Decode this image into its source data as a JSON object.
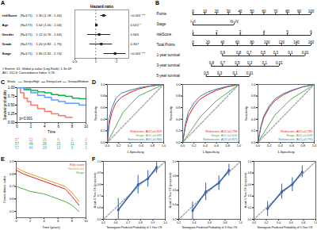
{
  "chart_data": [
    {
      "panel": "A",
      "type": "forest",
      "title": "Hazard ratio",
      "log": "x",
      "xlim": [
        0.5,
        3
      ],
      "xticks": [
        0.5,
        1,
        2
      ],
      "reference_line": 1,
      "rows": [
        {
          "name": "riskScore",
          "n_label": "(N=171)",
          "hr": 1.3,
          "lo": 1.18,
          "hi": 1.44,
          "hr_label": "1.30 (1.18 - 1.44)",
          "p_label": "<0.001 ***"
        },
        {
          "name": "Age",
          "n_label": "(N=171)",
          "hr": 1.02,
          "lo": 1.0,
          "hi": 1.04,
          "hr_label": "1.02 (1.00 - 1.04)",
          "p_label": "0.022 *"
        },
        {
          "name": "Gender",
          "n_label": "(N=171)",
          "hr": 1.12,
          "lo": 0.76,
          "hi": 1.64,
          "hr_label": "1.12 (0.76 - 1.64)",
          "p_label": "0.565"
        },
        {
          "name": "Grade",
          "n_label": "(N=171)",
          "hr": 1.2,
          "lo": 0.82,
          "hi": 1.75,
          "hr_label": "1.20 (0.82 - 1.75)",
          "p_label": "0.347"
        },
        {
          "name": "Stage",
          "n_label": "(N=171)",
          "hr": 1.9,
          "lo": 1.32,
          "hi": 2.74,
          "hr_label": "1.90 (1.32 - 2.74)",
          "p_label": "<0.001 ***"
        }
      ],
      "footer": [
        "# Events: 61; Global p-value (Log-Rank): 1.3e-09",
        "AIC: 512.6; Concordance Index: 0.76"
      ]
    },
    {
      "panel": "B",
      "type": "nomogram",
      "rows": [
        {
          "name": "Points",
          "xlim": [
            0,
            100
          ],
          "ticks": [
            0,
            10,
            20,
            30,
            40,
            50,
            60,
            70,
            80,
            90,
            100
          ]
        },
        {
          "name": "Stage",
          "xlim": [
            0,
            100
          ],
          "ticks": [
            {
              "points": 0,
              "label": "I~II"
            },
            {
              "points": 35,
              "label": "III~IV"
            }
          ]
        },
        {
          "name": "riskScore",
          "xlim": [
            1,
            6
          ],
          "ticks": [
            1,
            2,
            3,
            4,
            5,
            6
          ]
        },
        {
          "name": "Total Points",
          "xlim": [
            0,
            160
          ],
          "ticks": [
            0,
            20,
            40,
            60,
            80,
            100,
            120,
            140,
            160
          ]
        },
        {
          "name": "1-year survival",
          "xlim": [
            0,
            160
          ],
          "ticks": [
            {
              "points": 40,
              "value": 0.9
            },
            {
              "points": 62,
              "value": 0.8
            },
            {
              "points": 76,
              "value": 0.7
            },
            {
              "points": 95,
              "value": 0.5
            },
            {
              "points": 112,
              "value": 0.3
            },
            {
              "points": 132,
              "value": 0.1
            },
            {
              "points": 152,
              "value": 0.01
            }
          ]
        },
        {
          "name": "3-year survival",
          "xlim": [
            0,
            160
          ],
          "ticks": [
            {
              "points": 25,
              "value": 0.8
            },
            {
              "points": 40,
              "value": 0.7
            },
            {
              "points": 60,
              "value": 0.5
            },
            {
              "points": 77,
              "value": 0.3
            },
            {
              "points": 97,
              "value": 0.1
            },
            {
              "points": 117,
              "value": 0.01
            }
          ]
        },
        {
          "name": "5-year survival",
          "xlim": [
            0,
            160
          ],
          "ticks": [
            {
              "points": 18,
              "value": 0.5
            },
            {
              "points": 36,
              "value": 0.3
            },
            {
              "points": 57,
              "value": 0.1
            },
            {
              "points": 77,
              "value": 0.01
            }
          ]
        }
      ]
    },
    {
      "panel": "C",
      "type": "survival",
      "legend_title": "Strata",
      "xlabel": "Time",
      "ylabel": "Survival probability",
      "xlim": [
        0,
        10
      ],
      "xticks": [
        0,
        2,
        4,
        6,
        8,
        10
      ],
      "ylim": [
        0,
        1
      ],
      "yticks": [
        {
          "value": 0,
          "label": "0.00"
        },
        {
          "value": 0.25,
          "label": "0.25"
        },
        {
          "value": 0.5,
          "label": "0.50"
        },
        {
          "value": 0.75,
          "label": "0.75"
        },
        {
          "value": 1,
          "label": "1.00"
        }
      ],
      "annotation": "p<0.001",
      "risk_table_times": [
        0,
        2,
        4,
        6,
        8,
        10
      ],
      "series": [
        {
          "name": "Group=High",
          "color": "#F8766D",
          "x": [
            0,
            0.5,
            1,
            1.5,
            2,
            3,
            4,
            5,
            6,
            7,
            8
          ],
          "values": [
            1,
            0.85,
            0.7,
            0.6,
            0.5,
            0.4,
            0.32,
            0.25,
            0.2,
            0.15,
            0.15
          ],
          "at_risk": [
            57,
            32,
            15,
            6,
            2,
            0
          ]
        },
        {
          "name": "Group=Low",
          "color": "#00BA38",
          "x": [
            0,
            1,
            2,
            3,
            4,
            5,
            6,
            7,
            8,
            9,
            10
          ],
          "values": [
            1,
            0.96,
            0.92,
            0.88,
            0.85,
            0.8,
            0.78,
            0.75,
            0.7,
            0.68,
            0.68
          ],
          "at_risk": [
            57,
            49,
            38,
            23,
            11,
            3
          ]
        },
        {
          "name": "Group=Medium",
          "color": "#619CFF",
          "x": [
            0,
            1,
            2,
            3,
            4,
            5,
            6,
            7,
            8,
            9,
            10
          ],
          "values": [
            1,
            0.93,
            0.85,
            0.78,
            0.72,
            0.65,
            0.6,
            0.55,
            0.55,
            0.5,
            0.5
          ],
          "at_risk": [
            57,
            46,
            28,
            16,
            8,
            1
          ]
        }
      ]
    },
    {
      "panel": "D",
      "type": "roc",
      "xlabel": "1-Specificity",
      "ylabel": "Sensitivity",
      "xlim": [
        0,
        1
      ],
      "xticks": [
        {
          "value": 0,
          "label": "0.0"
        },
        0.2,
        0.4,
        0.6,
        0.8,
        {
          "value": 1,
          "label": "1.0"
        }
      ],
      "ylim": [
        0,
        1
      ],
      "yticks": [
        {
          "value": 0,
          "label": "0.0"
        },
        0.2,
        0.4,
        0.6,
        0.8,
        {
          "value": 1,
          "label": "1.0"
        }
      ],
      "series": [
        {
          "name": "Riskscore, AUC=0.829",
          "color": "#e41a1c",
          "x": [
            0,
            0.03,
            0.08,
            0.15,
            0.25,
            0.4,
            0.55,
            0.75,
            1
          ],
          "values": [
            0,
            0.3,
            0.52,
            0.68,
            0.78,
            0.86,
            0.92,
            0.97,
            1
          ]
        },
        {
          "name": "Stage, AUC=0.685",
          "color": "#4daf4a",
          "x": [
            0,
            0.28,
            0.55,
            1
          ],
          "values": [
            0,
            0.52,
            0.8,
            1
          ]
        },
        {
          "name": "Nomoscore, AUC=0.866",
          "color": "#377eb8",
          "x": [
            0,
            0.03,
            0.08,
            0.15,
            0.25,
            0.4,
            0.6,
            0.8,
            1
          ],
          "values": [
            0,
            0.4,
            0.6,
            0.76,
            0.85,
            0.9,
            0.95,
            0.98,
            1
          ]
        }
      ]
    },
    {
      "type": "roc",
      "xlabel": "1-Specificity",
      "ylabel": "Sensitivity",
      "xlim": [
        0,
        1
      ],
      "xticks": [
        {
          "value": 0,
          "label": "0.0"
        },
        0.2,
        0.4,
        0.6,
        0.8,
        {
          "value": 1,
          "label": "1.0"
        }
      ],
      "ylim": [
        0,
        1
      ],
      "yticks": [
        {
          "value": 0,
          "label": "0.0"
        },
        0.2,
        0.4,
        0.6,
        0.8,
        {
          "value": 1,
          "label": "1.0"
        }
      ],
      "series": [
        {
          "name": "Riskscore, AUC=0.798",
          "color": "#e41a1c",
          "x": [
            0,
            0.05,
            0.1,
            0.2,
            0.3,
            0.45,
            0.6,
            0.8,
            1
          ],
          "values": [
            0,
            0.28,
            0.45,
            0.62,
            0.74,
            0.83,
            0.9,
            0.96,
            1
          ]
        },
        {
          "name": "Stage, AUC=0.634",
          "color": "#4daf4a",
          "x": [
            0,
            0.32,
            0.6,
            1
          ],
          "values": [
            0,
            0.45,
            0.72,
            1
          ]
        },
        {
          "name": "Nomoscore, AUC=0.825",
          "color": "#377eb8",
          "x": [
            0,
            0.05,
            0.1,
            0.2,
            0.3,
            0.45,
            0.6,
            0.8,
            1
          ],
          "values": [
            0,
            0.33,
            0.52,
            0.68,
            0.79,
            0.87,
            0.92,
            0.97,
            1
          ]
        }
      ]
    },
    {
      "type": "roc",
      "xlabel": "1-Specificity",
      "ylabel": "Sensitivity",
      "xlim": [
        0,
        1
      ],
      "xticks": [
        {
          "value": 0,
          "label": "0.0"
        },
        0.2,
        0.4,
        0.6,
        0.8,
        {
          "value": 1,
          "label": "1.0"
        }
      ],
      "ylim": [
        0,
        1
      ],
      "yticks": [
        {
          "value": 0,
          "label": "0.0"
        },
        0.2,
        0.4,
        0.6,
        0.8,
        {
          "value": 1,
          "label": "1.0"
        }
      ],
      "series": [
        {
          "name": "Riskscore, AUC=0.785",
          "color": "#e41a1c",
          "x": [
            0,
            0.05,
            0.1,
            0.2,
            0.3,
            0.45,
            0.6,
            0.8,
            1
          ],
          "values": [
            0,
            0.25,
            0.42,
            0.6,
            0.72,
            0.82,
            0.89,
            0.96,
            1
          ]
        },
        {
          "name": "Stage, AUC=0.648",
          "color": "#4daf4a",
          "x": [
            0,
            0.3,
            0.58,
            1
          ],
          "values": [
            0,
            0.47,
            0.74,
            1
          ]
        },
        {
          "name": "Nomoscore, AUC=0.793",
          "color": "#377eb8",
          "x": [
            0,
            0.05,
            0.1,
            0.2,
            0.3,
            0.45,
            0.6,
            0.8,
            1
          ],
          "values": [
            0,
            0.27,
            0.45,
            0.63,
            0.75,
            0.84,
            0.9,
            0.96,
            1
          ]
        }
      ]
    },
    {
      "panel": "E",
      "type": "line",
      "xlabel": "Time (years)",
      "ylabel": "Concordance index",
      "xlim": [
        0,
        10
      ],
      "xticks": [
        0,
        2,
        4,
        6,
        8,
        10
      ],
      "ylim": [
        0.45,
        0.9
      ],
      "yticks": [
        0.5,
        0.6,
        0.7,
        0.8,
        0.9
      ],
      "series": [
        {
          "name": "Risk score",
          "color": "#e41a1c",
          "x": [
            0,
            1,
            2,
            3,
            4,
            5,
            6,
            7,
            8,
            9
          ],
          "values": [
            0.83,
            0.8,
            0.78,
            0.76,
            0.74,
            0.72,
            0.7,
            0.68,
            0.62,
            0.55
          ]
        },
        {
          "name": "Nomoscore",
          "color": "#d4a017",
          "x": [
            0,
            1,
            2,
            3,
            4,
            5,
            6,
            7,
            8,
            9
          ],
          "values": [
            0.85,
            0.82,
            0.8,
            0.78,
            0.76,
            0.74,
            0.72,
            0.7,
            0.65,
            0.58
          ]
        },
        {
          "name": "Stage",
          "color": "#4daf4a",
          "x": [
            0,
            1,
            2,
            3,
            4,
            5,
            6,
            7,
            8,
            9
          ],
          "values": [
            0.7,
            0.68,
            0.66,
            0.65,
            0.64,
            0.62,
            0.6,
            0.58,
            0.55,
            0.5
          ]
        }
      ]
    },
    {
      "panel": "F",
      "type": "calibration",
      "xlabel": "Nomogram-Predicted Probability of 1-Year OS",
      "ylabel": "Actual 1-Year OS (proportion)",
      "xlim": [
        0.5,
        1
      ],
      "xticks": [
        0.5,
        0.6,
        0.7,
        0.8,
        0.9,
        {
          "value": 1,
          "label": "1.0"
        }
      ],
      "ylim": [
        0.5,
        1
      ],
      "yticks": [
        0.5,
        0.6,
        0.7,
        0.8,
        0.9,
        {
          "value": 1,
          "label": "1.0"
        }
      ],
      "color": "#2f5fb3",
      "marker": "circle",
      "x": [
        0.62,
        0.78,
        0.86,
        0.93
      ],
      "values": [
        0.58,
        0.8,
        0.85,
        0.95
      ],
      "lower": [
        0.48,
        0.72,
        0.78,
        0.9
      ],
      "upper": [
        0.68,
        0.88,
        0.92,
        1.0
      ]
    },
    {
      "type": "calibration",
      "xlabel": "Nomogram-Predicted Probability of 3-Year OS",
      "ylabel": "Actual 3-Year OS (proportion)",
      "xlim": [
        0.2,
        1
      ],
      "xticks": [
        0.2,
        0.4,
        0.6,
        0.8,
        {
          "value": 1,
          "label": "1.0"
        }
      ],
      "ylim": [
        0.2,
        1
      ],
      "yticks": [
        0.2,
        0.4,
        0.6,
        0.8,
        {
          "value": 1,
          "label": "1.0"
        }
      ],
      "color": "#2f5fb3",
      "marker": "circle",
      "x": [
        0.38,
        0.55,
        0.72,
        0.85
      ],
      "values": [
        0.32,
        0.58,
        0.7,
        0.88
      ],
      "lower": [
        0.2,
        0.46,
        0.6,
        0.8
      ],
      "upper": [
        0.44,
        0.7,
        0.8,
        0.96
      ]
    },
    {
      "type": "calibration",
      "xlabel": "Nomogram-Predicted Probability of 5-Year OS",
      "ylabel": "Actual 5-Year OS (proportion)",
      "xlim": [
        0,
        1
      ],
      "xticks": [
        {
          "value": 0,
          "label": "0.0"
        },
        0.2,
        0.4,
        0.6,
        0.8,
        {
          "value": 1,
          "label": "1.0"
        }
      ],
      "ylim": [
        0,
        1
      ],
      "yticks": [
        {
          "value": 0,
          "label": "0.0"
        },
        0.2,
        0.4,
        0.6,
        0.8,
        {
          "value": 1,
          "label": "1.0"
        }
      ],
      "color": "#2f5fb3",
      "marker": "circle",
      "x": [
        0.22,
        0.45,
        0.62,
        0.78
      ],
      "values": [
        0.18,
        0.48,
        0.6,
        0.82
      ],
      "lower": [
        0.05,
        0.35,
        0.48,
        0.72
      ],
      "upper": [
        0.31,
        0.61,
        0.72,
        0.92
      ]
    }
  ]
}
